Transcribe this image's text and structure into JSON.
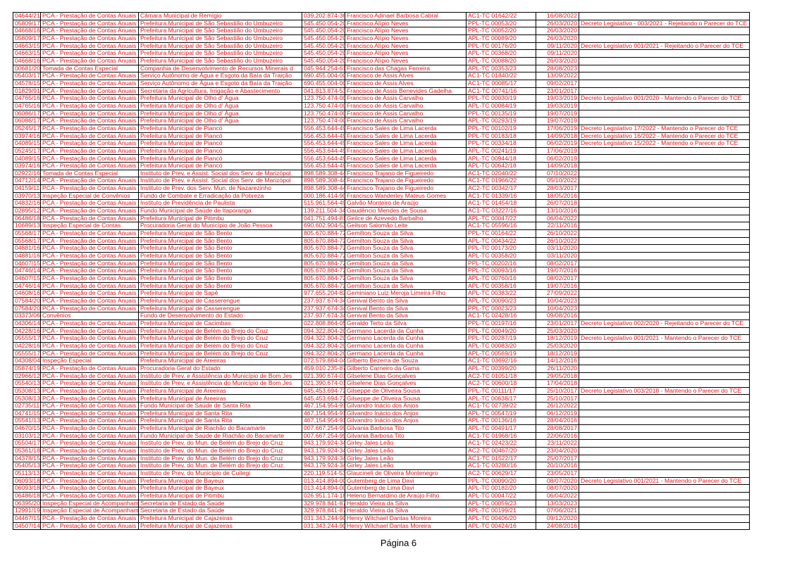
{
  "table": {
    "rows": [
      [
        "04644/21",
        "PCA - Prestação de Contas Anuais",
        "Câmara Municipal de Remígio",
        "039.202.874-36",
        "Francisco Adinael Barbosa Cabral",
        "AC1-TC 01642/22",
        "16/08/2022"
      ],
      [
        "05809/17",
        "PCA - Prestação de Contas Anuais",
        "Prefeitura Municipal de São Sebastião do Umbuzeiro",
        "545.450.054-20",
        "Francisco Alípio Neves",
        "PPL-TC 00053/20",
        "26/03/2020",
        "Decreto Legislativo - 003/2021 - Rejeitando o Parecer do TCE"
      ],
      [
        "04668/16",
        "PCA - Prestação de Contas Anuais",
        "Prefeitura Municipal de São Sebastião do Umbuzeiro",
        "545.450.054-20",
        "Francisco Alípio Neves",
        "PPL-TC 00052/20",
        "26/03/2020"
      ],
      [
        "05809/17",
        "PCA - Prestação de Contas Anuais",
        "Prefeitura Municipal de São Sebastião do Umbuzeiro",
        "545.450.054-20",
        "Francisco Alípio Neves",
        "APL-TC 00089/20",
        "26/03/2020"
      ],
      [
        "04663/15",
        "PCA - Prestação de Contas Anuais",
        "Prefeitura Municipal de São Sebastião do Umbuzeiro",
        "545.450.054-20",
        "Francisco Alípio Neves",
        "PPL-TC 00176/20",
        "09/11/2020",
        "Decreto Legislativo 001/2021 - Rejeitando o Parecer do TCE"
      ],
      [
        "04663/15",
        "PCA - Prestação de Contas Anuais",
        "Prefeitura Municipal de São Sebastião do Umbuzeiro",
        "545.450.054-20",
        "Francisco Alípio Neves",
        "APL-TC 00368/20",
        "09/11/2020"
      ],
      [
        "04668/16",
        "PCA - Prestação de Contas Anuais",
        "Prefeitura Municipal de São Sebastião do Umbuzeiro",
        "545.450.054-20",
        "Francisco Alípio Neves",
        "APL-TC 00088/20",
        "26/03/2020"
      ],
      [
        "00681/20",
        "Tomada de Contas Especial",
        "Companhia de Desenvolvimento de Recursos Minerais d",
        "045.944.254-61",
        "Francisco das Chagas Ferreira",
        "APL-TC 00353/23",
        "28/08/2023"
      ],
      [
        "05403/17",
        "PCA - Prestação de Contas Anuais",
        "Serviço Autônomo de Água e Esgoto da Baía da Traição",
        "690.455.004-00",
        "Francisco de Assis Alves",
        "AC1-TC 01840/22",
        "13/09/2022"
      ],
      [
        "04578/15",
        "PCA - Prestação de Contas Anuais",
        "Serviço Autônomo de Água e Esgoto da Baía da Traição",
        "690.455.004-00",
        "Francisco de Assis Alves",
        "AC1-TC 00085/17",
        "09/02/2017"
      ],
      [
        "01829/91",
        "PCA - Prestação de Contas Anuais",
        "Secretaria da Agricultura, Irrigação e Abastecimento",
        "041.813.874-53",
        "Francisco de Assis Benevides Gadelha",
        "AC1-TC 00741/16",
        "23/01/2017"
      ],
      [
        "04765/16",
        "PCA - Prestação de Contas Anuais",
        "Prefeitura Municipal de Olho d' Água",
        "123.750.474-00",
        "Francisco de Assis Carvalho",
        "PPL-TC 00030/19",
        "19/03/2019",
        "Decreto Legislativo 001/2020 - Mantendo o Parecer do TCE"
      ],
      [
        "04765/16",
        "PCA - Prestação de Contas Anuais",
        "Prefeitura Municipal de Olho d' Água",
        "123.750.474-00",
        "Francisco de Assis Carvalho",
        "APL-TC 00084/19",
        "19/03/2019"
      ],
      [
        "06086/17",
        "PCA - Prestação de Contas Anuais",
        "Prefeitura Municipal de Olho d' Água",
        "123.750.474-00",
        "Francisco de Assis Carvalho",
        "PPL-TC 00135/19",
        "19/07/2019"
      ],
      [
        "06086/17",
        "PCA - Prestação de Contas Anuais",
        "Prefeitura Municipal de Olho d' Água",
        "123.750.474-00",
        "Francisco de Assis Carvalho",
        "APL-TC 00293/19",
        "19/07/2019"
      ],
      [
        "05245/17",
        "PCA - Prestação de Contas Anuais",
        "Prefeitura Municipal de Piancó",
        "556.453.644-49",
        "Francisco Sales de Lima Lacerda",
        "PPL-TC 00102/19",
        "17/06/2019",
        "Decreto Legislativo 17/2022 - Mantendo o Parecer do TCE"
      ],
      [
        "03974/16",
        "PCA - Prestação de Contas Anuais",
        "Prefeitura Municipal de Piancó",
        "556.453.644-49",
        "Francisco Sales de Lima Lacerda",
        "PPL-TC 00183/18",
        "14/09/2018",
        "Decreto Legislativo 16/2022 - Mantendo o Parecer do TCE"
      ],
      [
        "04089/15",
        "PCA - Prestação de Contas Anuais",
        "Prefeitura Municipal de Piancó",
        "556.453.644-49",
        "Francisco Sales de Lima Lacerda",
        "PPL-TC 00334/18",
        "06/02/2019",
        "Decreto Legislativo 15/2022 - Mantendo o Parecer do TCE"
      ],
      [
        "05245/17",
        "PCA - Prestação de Contas Anuais",
        "Prefeitura Municipal de Piancó",
        "556.453.644-49",
        "Francisco Sales de Lima Lacerda",
        "APL-TC 00241/19",
        "17/06/2019"
      ],
      [
        "04089/15",
        "PCA - Prestação de Contas Anuais",
        "Prefeitura Municipal de Piancó",
        "556.453.644-49",
        "Francisco Sales de Lima Lacerda",
        "APL-TC 00944/18",
        "06/02/2019"
      ],
      [
        "03974/16",
        "PCA - Prestação de Contas Anuais",
        "Prefeitura Municipal de Piancó",
        "556.453.644-49",
        "Francisco Sales de Lima Lacerda",
        "APL-TC 00642/18",
        "14/09/2018"
      ],
      [
        "02922/16",
        "Tomada de Contas Especial",
        "Instituto de Prev. e Assist. Social dos Serv. de Marizópol",
        "898.589.308-44",
        "Francisco Trajano de Figueiredo",
        "AC1-TC 02040/22",
        "07/10/2022"
      ],
      [
        "04712/14",
        "PCA - Prestação de Contas Anuais",
        "Instituto de Prev. e Assist. Social dos Serv. de Marizópol",
        "898.589.308-44",
        "Francisco Trajano de Figueiredo",
        "AC1-TC 01966/22",
        "05/10/2022"
      ],
      [
        "04159/11",
        "PCA - Prestação de Contas Anuais",
        "Instituto de Prev. dos Serv. Mun. de Nazarezinho",
        "898.589.308-44",
        "Francisco Trajano de Figueiredo",
        "AC2-TC 00342/17",
        "28/03/2017"
      ],
      [
        "03970/13",
        "Inspeção Especial de Convênios",
        "Fundo de Combate e Erradicação da Pobreza",
        "000.186.414-90",
        "Francisco Wanderley Mateus Gomes",
        "AC1-TC 01339/16",
        "18/05/2016"
      ],
      [
        "04832/16",
        "PCA - Prestação de Contas Anuais",
        "Instituto de Previdência de Paulista",
        "515.961.564-49",
        "Galvão Monteiro de Araújo",
        "AC1-TC 01454/18",
        "26/07/2018"
      ],
      [
        "02895/12",
        "PCA - Prestação de Contas Anuais",
        "Fundo Municipal de Saúde de Itaporanga",
        "139.211.504-34",
        "Gaudêncio Mendes de Sousa",
        "AC1-TC 03227/16",
        "13/10/2016"
      ],
      [
        "06486/18",
        "PCA - Prestação de Contas Anuais",
        "Prefeitura Municipal de Pitimbu",
        "041.751.494-81",
        "Geilce de Azevedo Barbalho",
        "APL-TC 00047/22",
        "06/04/2022"
      ],
      [
        "10689/13",
        "Inspeção Especial de Contas",
        "Procuradoria Geral do Município de João Pessoa",
        "690.602.904-53",
        "Geilson Salomão Leite",
        "AC1-TC 05596/16",
        "22/11/2016"
      ],
      [
        "05568/17",
        "PCA - Prestação de Contas Anuais",
        "Prefeitura Municipal de São Bento",
        "805.670.884-72",
        "Gemilton Souza da Silva",
        "PPL-TC 00164/22",
        "26/10/2022"
      ],
      [
        "05568/17",
        "PCA - Prestação de Contas Anuais",
        "Prefeitura Municipal de São Bento",
        "805.670.884-72",
        "Gemilton Souza da Silva",
        "APL-TC 00434/22",
        "26/10/2022"
      ],
      [
        "04881/16",
        "PCA - Prestação de Contas Anuais",
        "Prefeitura Municipal de São Bento",
        "805.670.884-72",
        "Gemilton Souza da Silva",
        "PPL-TC 00173/20",
        "03/11/2020"
      ],
      [
        "04881/16",
        "PCA - Prestação de Contas Anuais",
        "Prefeitura Municipal de São Bento",
        "805.670.884-72",
        "Gemilton Souza da Silva",
        "APL-TC 00358/20",
        "03/11/2020"
      ],
      [
        "04607/15",
        "PCA - Prestação de Contas Anuais",
        "Prefeitura Municipal de São Bento",
        "805.670.884-72",
        "Gemilton Souza da Silva",
        "PPL-TC 00202/16",
        "08/02/2017"
      ],
      [
        "04746/14",
        "PCA - Prestação de Contas Anuais",
        "Prefeitura Municipal de São Bento",
        "805.670.884-72",
        "Gemilton Souza da Silva",
        "PPL-TC 00093/16",
        "19/07/2016"
      ],
      [
        "04607/15",
        "PCA - Prestação de Contas Anuais",
        "Prefeitura Municipal de São Bento",
        "805.670.884-72",
        "Gemilton Souza da Silva",
        "APL-TC 00760/16",
        "08/02/2017"
      ],
      [
        "04746/14",
        "PCA - Prestação de Contas Anuais",
        "Prefeitura Municipal de São Bento",
        "805.670.884-72",
        "Gemilton Souza da Silva",
        "APL-TC 00358/16",
        "19/07/2016"
      ],
      [
        "04608/16",
        "PCA - Prestação de Contas Anuais",
        "Prefeitura Municipal de Sapé",
        "977.655.204-82",
        "Geminiano Luiz Meroja Limeira Filho",
        "APL-TC 00383/22",
        "27/09/2022"
      ],
      [
        "07584/20",
        "PCA - Prestação de Contas Anuais",
        "Prefeitura Municipal de Casserengue",
        "237.937.674-34",
        "Genival Bento da Silva",
        "APL-TC 00090/23",
        "10/04/2023"
      ],
      [
        "07584/20",
        "PCA - Prestação de Contas Anuais",
        "Prefeitura Municipal de Casserengue",
        "237.937.674-34",
        "Genival Bento da Silva",
        "PPL-TC 00023/23",
        "10/04/2023"
      ],
      [
        "03373/06",
        "Convênios",
        "Fundo de Desenvolvimento do Estado",
        "237.937.674-34",
        "Genival Bento da Silva",
        "AC1-TC 02428/16",
        "09/08/2016"
      ],
      [
        "04306/14",
        "PCA - Prestação de Contas Anuais",
        "Prefeitura Municipal de Cacimbas",
        "022.808.864-05",
        "Geraldo Terto da Silva",
        "PPL-TC 00197/16",
        "23/01/2017",
        "Decreto Legislativo 002/2020 - Rejeitando o Parecer do TCE"
      ],
      [
        "04228/16",
        "PCA - Prestação de Contas Anuais",
        "Prefeitura Municipal de Belém do Brejo do Cruz",
        "094.322.804-20",
        "Germano Lacerda da Cunha",
        "PPL-TC 00049/20",
        "25/03/2020"
      ],
      [
        "05555/17",
        "PCA - Prestação de Contas Anuais",
        "Prefeitura Municipal de Belém do Brejo do Cruz",
        "094.322.804-20",
        "Germano Lacerda da Cunha",
        "PPL-TC 00287/19",
        "18/12/2019",
        "Decreto Legislativo 001/2021 - Mantendo o Parecer do TCE"
      ],
      [
        "04228/16",
        "PCA - Prestação de Contas Anuais",
        "Prefeitura Municipal de Belém do Brejo do Cruz",
        "094.322.804-20",
        "Germano Lacerda da Cunha",
        "APL-TC 00083/20",
        "25/03/2020"
      ],
      [
        "05555/17",
        "PCA - Prestação de Contas Anuais",
        "Prefeitura Municipal de Belém do Brejo do Cruz",
        "094.322.804-20",
        "Germano Lacerda da Cunha",
        "APL-TC 00569/19",
        "18/12/2019"
      ],
      [
        "04308/04",
        "Inspeção Especial",
        "Prefeitura Municipal de Areeiras",
        "072.579.884-04",
        "Gilberto Bezerra de Souza",
        "AC1-TC 03692/16",
        "14/12/2016"
      ],
      [
        "05874/19",
        "PCA - Prestação de Contas Anuais",
        "Procuradoria Geral do Estado",
        "459.010.235-87",
        "Gilberto Carneiro da Gama",
        "APL-TC 00399/20",
        "26/11/2020"
      ],
      [
        "02966/12",
        "PCA - Prestação de Contas Anuais",
        "Instituto de Prev. e Assistência do Município de Bom Jes",
        "021.390.674-01",
        "Gilselene Dias Gonçalves",
        "AC2-TC 01051/18",
        "29/05/2018"
      ],
      [
        "05540/13",
        "PCA - Prestação de Contas Anuais",
        "Instituto de Prev. e Assistência do Município de Bom Jes",
        "021.390.674-01",
        "Gilselene Dias Gonçalves",
        "AC2-TC 00600/18",
        "17/04/2018"
      ],
      [
        "05308/13",
        "PCA - Prestação de Contas Anuais",
        "Prefeitura Municipal de Areeiras",
        "645.453.694-72",
        "Gilseppe de Oliveira Sousa",
        "PPL-TC 00111/17",
        "25/10/2017",
        "Decreto Legislativo 003/2018 - Mantendo o Parecer do TCE"
      ],
      [
        "05308/13",
        "PCA - Prestação de Contas Anuais",
        "Prefeitura Municipal de Areeiras",
        "645.453.694-72",
        "Gilseppe de Oliveira Sousa",
        "APL-TC 00638/17",
        "25/10/2017"
      ],
      [
        "02735/11",
        "PCA - Prestação de Contas Anuais",
        "Fundo Municipal de Saúde de Santa Rita",
        "467.154.954-91",
        "Gilvandro Inácio dos Anjos",
        "AC1-TC 02739/22",
        "26/12/2022"
      ],
      [
        "04741/15",
        "PCA - Prestação de Contas Anuais",
        "Prefeitura Municipal de Santa Rita",
        "467.154.954-91",
        "Gilvandro Inácio dos Anjos",
        "APL-TC 00547/19",
        "06/12/2019"
      ],
      [
        "05541/13",
        "PCA - Prestação de Contas Anuais",
        "Prefeitura Municipal de Santa Rita",
        "467.154.954-91",
        "Gilvandro Inácio dos Anjos",
        "APL-TC 00136/16",
        "28/04/2016"
      ],
      [
        "04670/15",
        "PCA - Prestação de Contas Anuais",
        "Prefeitura Municipal de Riachão do Bacamarte",
        "007.667.254-99",
        "Gilvania Barbosa Tito",
        "APL-TC 00491/17",
        "28/08/2017"
      ],
      [
        "03103/12",
        "PCA - Prestação de Contas Anuais",
        "Fundo Municipal de Saúde de Riachão do Bacamarte",
        "007.667.254-99",
        "Gilvania Barbosa Tito",
        "AC1-TC 01968/16",
        "22/06/2016"
      ],
      [
        "05504/17",
        "PCA - Prestação de Contas Anuais",
        "Instituto de Prev. do Mun. de Belém do Brejo do Cruz",
        "943.179.924-34",
        "Girley Jales Leão",
        "AC1-TC 02423/22",
        "23/11/2022"
      ],
      [
        "05361/18",
        "PCA - Prestação de Contas Anuais",
        "Instituto de Prev. do Mun. de Belém do Brejo do Cruz",
        "943.179.924-34",
        "Girley Jales Leão",
        "AC2-TC 00467/20",
        "23/04/2020"
      ],
      [
        "04378/15",
        "PCA - Prestação de Contas Anuais",
        "Instituto de Prev. do Mun. de Belém do Brejo do Cruz",
        "943.179.924-34",
        "Girley Jales Leão",
        "AC1-TC 01522/17",
        "25/07/2017"
      ],
      [
        "05405/13",
        "PCA - Prestação de Contas Anuais",
        "Instituto de Prev. do Mun. de Belém do Brejo do Cruz",
        "943.179.924-34",
        "Girley Jales Leão",
        "AC1-TC 03280/16",
        "20/10/2016"
      ],
      [
        "05113/13",
        "PCA - Prestação de Contas Anuais",
        "Instituto de Prev. do Município de Cuitegi",
        "220.119.514-53",
        "Glaucineli de Oliveira Montenegro",
        "AC2-TC 00629/17",
        "23/05/2017"
      ],
      [
        "06093/18",
        "PCA - Prestação de Contas Anuais",
        "Prefeitura Municipal de Bayeux",
        "013.414.894-00",
        "Gutemberg de Lima Davi",
        "PPL-TC 00090/20",
        "08/07/2020",
        "Decreto Legislativo 001/2021 - Mantendo o Parecer do TCE"
      ],
      [
        "06093/18",
        "PCA - Prestação de Contas Anuais",
        "Prefeitura Municipal de Bayeux",
        "013.414.894-00",
        "Gutemberg de Lima Davi",
        "APL-TC 00182/20",
        "08/07/2020"
      ],
      [
        "06486/18",
        "PCA - Prestação de Contas Anuais",
        "Prefeitura Municipal de Pitimbu",
        "026.951.174-18",
        "Heleno Bernardino de Araújo Filho",
        "APL-TC 00047/22",
        "06/04/2022"
      ],
      [
        "06395/20",
        "Inspeção Especial de Acompanhamen",
        "Secretaria de Estado da Saúde",
        "329.978.841-87",
        "Heraldo Vieira da Silva",
        "APL-TC 00059/23",
        "13/03/2023"
      ],
      [
        "12991/19",
        "Inspeção Especial de Acompanhamen",
        "Secretaria de Estado da Saúde",
        "329.978.841-87",
        "Heraldo Vieira da Silva",
        "APL-TC 00199/21",
        "07/06/2021"
      ],
      [
        "04467/15",
        "PCA - Prestação de Contas Anuais",
        "Prefeitura Municipal de Cajazeiras",
        "031.343.244-90",
        "Henry Witchael Dantas Moreira",
        "APL-TC 00406/20",
        "09/12/2020"
      ],
      [
        "04507/14",
        "PCA - Prestação de Contas Anuais",
        "Prefeitura Municipal de Cajazeiras",
        "031.343.244-90",
        "Henry Witchael Dantas Moreira",
        "APL-TC 00424/16",
        "24/08/2016"
      ]
    ]
  },
  "footer": {
    "page": "Página 6"
  }
}
